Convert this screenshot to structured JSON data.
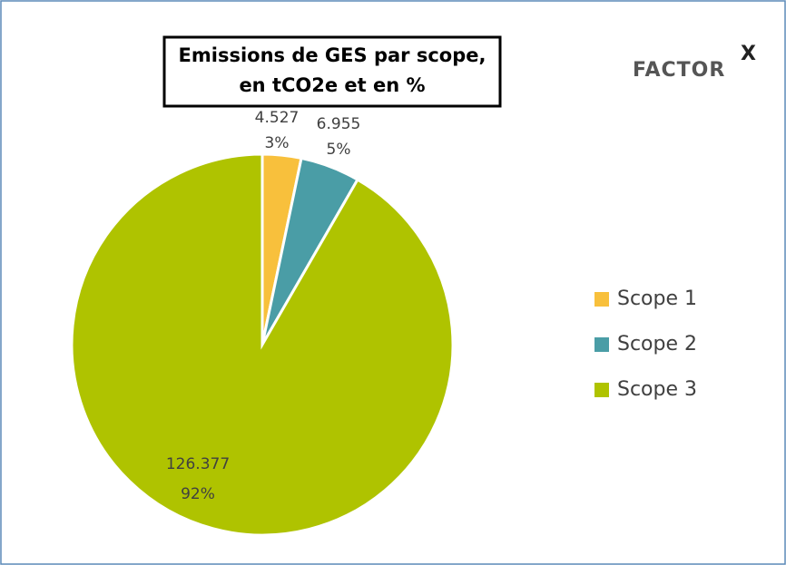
{
  "chart_data": {
    "type": "pie",
    "title": [
      "Emissions de GES par scope,",
      "en tCO2e et en %"
    ],
    "categories": [
      "Scope 1",
      "Scope 2",
      "Scope 3"
    ],
    "values": [
      4.527,
      6.955,
      126.377
    ],
    "percent_labels": [
      "3%",
      "5%",
      "92%"
    ],
    "colors": [
      "#f8c03c",
      "#4a9da6",
      "#afc300"
    ],
    "legend": "right"
  },
  "logo": {
    "text": "FACTOR",
    "mark": "X"
  }
}
